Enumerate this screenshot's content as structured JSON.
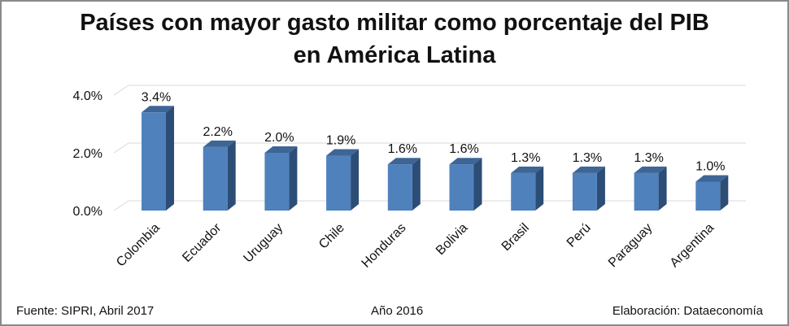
{
  "chart_data": {
    "type": "bar",
    "title": [
      "Países con mayor gasto militar como porcentaje del PIB",
      "en América Latina"
    ],
    "categories": [
      "Colombia",
      "Ecuador",
      "Uruguay",
      "Chile",
      "Honduras",
      "Bolivia",
      "Brasil",
      "Perú",
      "Paraguay",
      "Argentina"
    ],
    "values": [
      3.4,
      2.2,
      2.0,
      1.9,
      1.6,
      1.6,
      1.3,
      1.3,
      1.3,
      1.0
    ],
    "data_labels": [
      "3.4%",
      "2.2%",
      "2.0%",
      "1.9%",
      "1.6%",
      "1.6%",
      "1.3%",
      "1.3%",
      "1.3%",
      "1.0%"
    ],
    "ylim": [
      0,
      4
    ],
    "yticks": [
      0,
      2,
      4
    ],
    "ytick_labels": [
      "0.0%",
      "2.0%",
      "4.0%"
    ],
    "xlabel": "",
    "ylabel": "",
    "grid": true,
    "style": "3d-column"
  },
  "footer": {
    "source": "Fuente: SIPRI, Abril 2017",
    "year": "Año 2016",
    "credit": "Elaboración: Dataeconomía"
  },
  "colors": {
    "bar_front": "#4f81bd",
    "bar_side": "#2c4d75",
    "bar_top": "#3d6595",
    "grid": "#d9d9d9",
    "text": "#111111"
  }
}
